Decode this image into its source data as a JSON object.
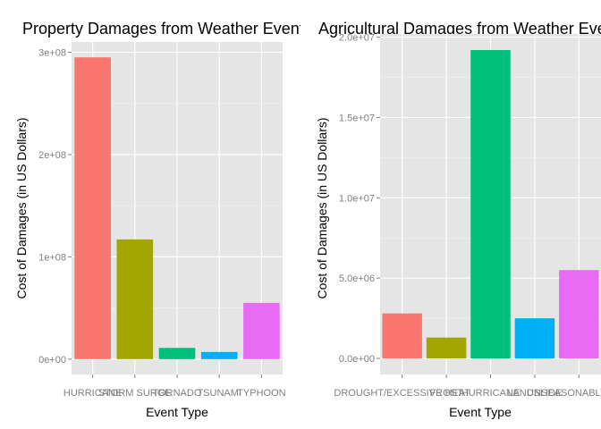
{
  "chart_data": [
    {
      "type": "bar",
      "title": "Property Damages from Weather Events",
      "xlabel": "Event Type",
      "ylabel": "Cost of Damages (in US Dollars)",
      "categories": [
        "HURRICANE",
        "STORM SURGE",
        "TORNADO",
        "TSUNAMI",
        "TYPHOON"
      ],
      "values": [
        295000000,
        117000000,
        11000000,
        7000000,
        55000000
      ],
      "colors": [
        "#F8766D",
        "#A3A500",
        "#00BF7D",
        "#00B0F6",
        "#E76BF3"
      ],
      "yticks": [
        0,
        100000000,
        200000000,
        300000000
      ],
      "ytick_labels": [
        "0e+00",
        "1e+08",
        "2e+08",
        "3e+08"
      ],
      "ylim": [
        -15000000,
        310000000
      ],
      "grid": true,
      "legend": "none"
    },
    {
      "type": "bar",
      "title": "Agricultural Damages from Weather Events",
      "xlabel": "Event Type",
      "ylabel": "Cost of Damages (in US Dollars)",
      "categories": [
        "DROUGHT/EXCESSIVE HEAT",
        "FROST",
        "HURRICANE",
        "LANDSLIDE",
        "UNSEASONABLY WET"
      ],
      "values": [
        2800000,
        1300000,
        19200000,
        2500000,
        5500000
      ],
      "colors": [
        "#F8766D",
        "#A3A500",
        "#00BF7D",
        "#00B0F6",
        "#E76BF3"
      ],
      "yticks": [
        0,
        5000000,
        10000000,
        15000000,
        20000000
      ],
      "ytick_labels": [
        "0.0e+00",
        "5.0e+06",
        "1.0e+07",
        "1.5e+07",
        "2.0e+07"
      ],
      "ylim": [
        -1000000,
        20200000
      ],
      "grid": true,
      "legend": "none"
    }
  ]
}
